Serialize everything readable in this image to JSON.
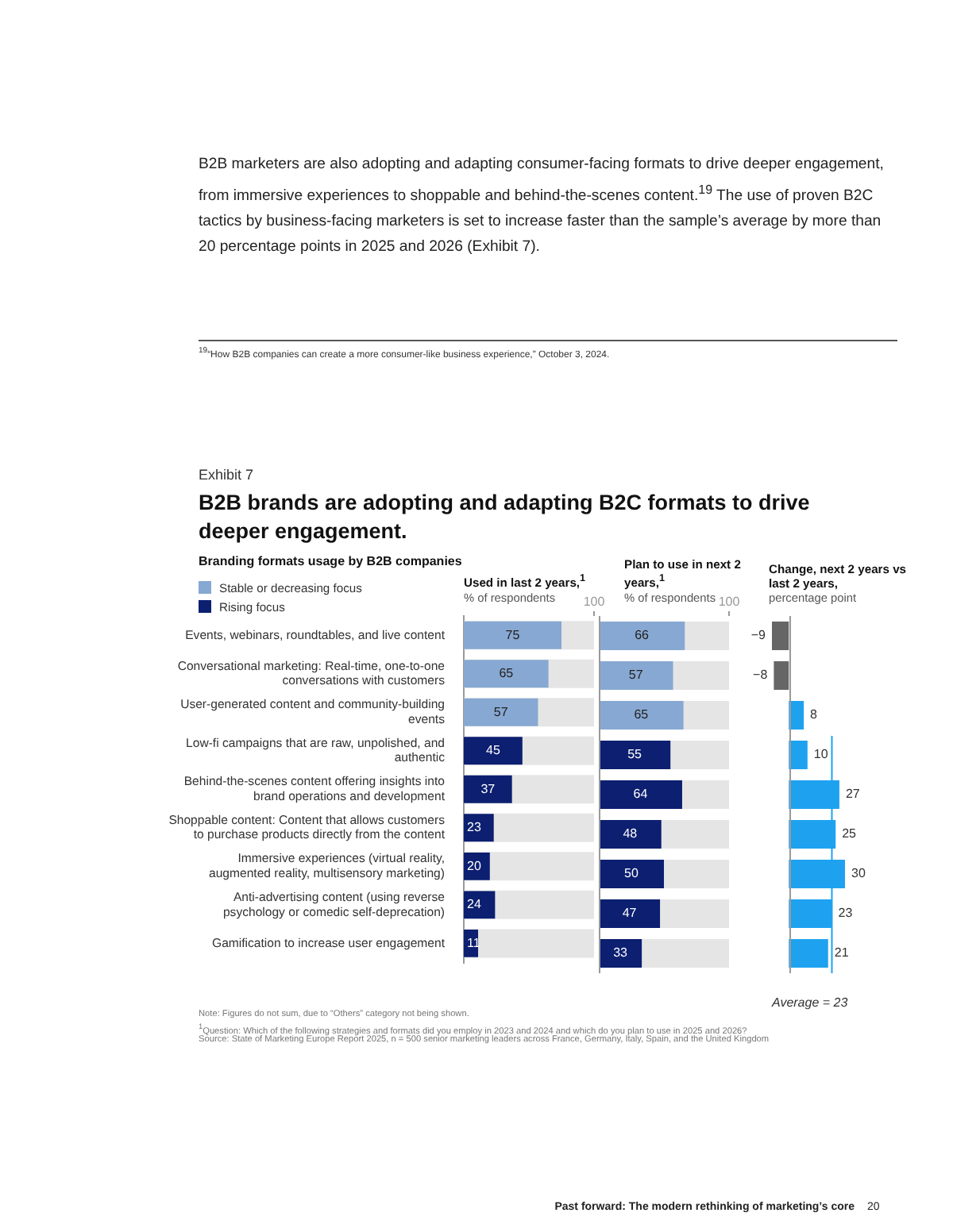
{
  "chart_data": [
    {
      "type": "other",
      "title": "B2B brands are adopting and adapting B2C formats to drive deeper engagement.",
      "subtitle": "Branding formats usage by B2B companies",
      "annotations": [
        "B2B marketers are also adopting and adapting consumer-facing formats to drive deeper engagement, from immersive experiences to shoppable and behind-the-scenes content.$^{19}$ The use of proven B2C tactics by business-facing marketers is set to increase faster than the sample’s average by more than 20 percentage points in 2025 and 2026 (Exhibit 7).",
        "$^{19}$“How B2B companies can create a more consumer-like business experience,” October 3, 2024.",
        "Exhibit 7"
      ]
    },
    {
      "type": "bar",
      "orientation": "horizontal",
      "stacked": true,
      "title": "Used in last 2 years,$^{1}$",
      "subtitle": "% of respondents",
      "categories": [
        "Events, webinars, roundtables, and live content",
        "Conversational marketing: Real-time, one-to-one conversations with customers",
        "User-generated content and community-building events",
        "Low-fi campaigns that are raw, unpolished, and authentic",
        "Behind-the-scenes content offering insights into brand operations and development",
        "Shoppable content: Content that allows customers to purchase products directly from the content",
        "Immersive experiences (virtual reality, augmented reality, multisensory marketing)",
        "Anti-advertising content (using reverse psychology or comedic self-deprecation)",
        "Gamification to increase user engagement"
      ],
      "series": [
        {
          "name": "Stable or decreasing focus",
          "color": "#87a8d2",
          "values": [
            75,
            65,
            57,
            null,
            null,
            null,
            null,
            null,
            null
          ]
        },
        {
          "name": "Rising focus",
          "color": "#0c1f70",
          "values": [
            null,
            null,
            null,
            45,
            37,
            23,
            20,
            24,
            11
          ]
        }
      ],
      "xlim": [
        0,
        100
      ],
      "xticks": [
        100
      ],
      "data_labels": true,
      "legend": "top left"
    },
    {
      "type": "bar",
      "orientation": "horizontal",
      "stacked": true,
      "title": "Plan to use in next 2 years,$^{1}$",
      "subtitle": "% of respondents",
      "categories": [
        null,
        null,
        null,
        null,
        null,
        null,
        null,
        null,
        null
      ],
      "series": [
        {
          "color": "#87a8d2",
          "values": [
            66,
            57,
            65,
            null,
            null,
            null,
            null,
            null,
            null
          ]
        },
        {
          "color": "#0c1f70",
          "values": [
            null,
            null,
            null,
            55,
            64,
            48,
            50,
            47,
            33
          ]
        }
      ],
      "xlim": [
        0,
        100
      ],
      "xticks": [
        100
      ],
      "data_labels": true,
      "tick_labels": "x"
    },
    {
      "type": "bar",
      "orientation": "horizontal",
      "title": "Change, next 2 years vs last 2 years,",
      "subtitle": "percentage point",
      "categories": [
        null,
        null,
        null,
        null,
        null,
        null,
        null,
        null,
        null
      ],
      "values": [
        -9,
        -8,
        8,
        10,
        27,
        25,
        30,
        23,
        21
      ],
      "colors": [
        "#666666",
        "#666666",
        "#1ea2f0",
        "#1ea2f0",
        "#1ea2f0",
        "#1ea2f0",
        "#1ea2f0",
        "#1ea2f0",
        "#1ea2f0"
      ],
      "value_labels": [
        "−9",
        "−8",
        "8",
        "10",
        "27",
        "25",
        "30",
        "23",
        "21"
      ],
      "tick_labels": false,
      "ref_lines": [
        {
          "axis": "x",
          "value": 23,
          "label": "Average = 23",
          "color": "#1ea2f0"
        }
      ]
    },
    {
      "type": "other",
      "annotations": [
        "Note: Figures do not sum, due to “Others” category not being shown.",
        "$^{1}$Question: Which of the following strategies and formats did you employ in 2023 and 2024 and which do you plan to use in 2025 and 2026?",
        "Source: State of Marketing Europe Report 2025, n = 500 senior marketing leaders across France, Germany, Italy, Spain, and the United Kingdom",
        "Past forward: The modern rethinking of marketing’s core",
        "20"
      ]
    }
  ]
}
